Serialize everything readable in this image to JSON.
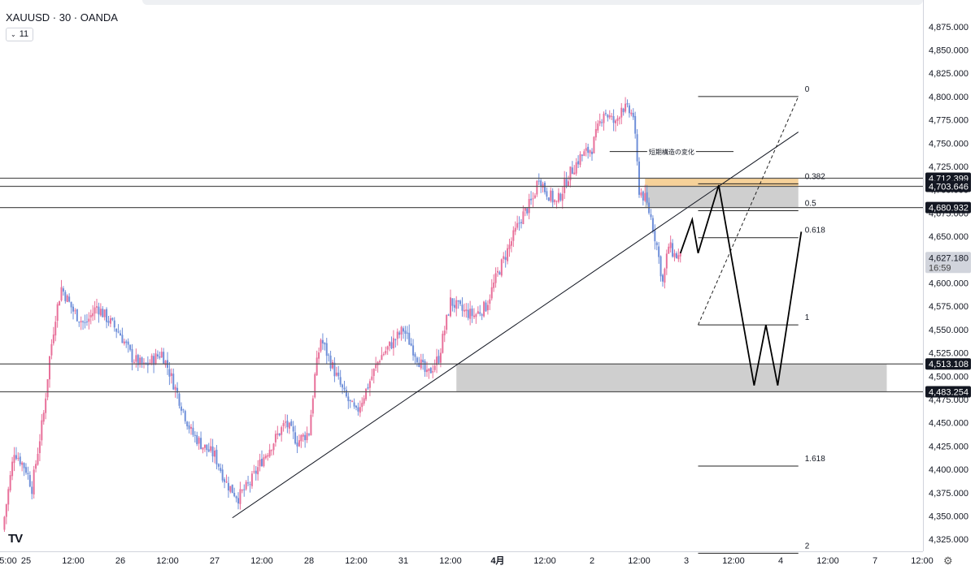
{
  "header": {
    "symbol": "XAUUSD · 30 · OANDA",
    "indicator_count": "11",
    "indicator_icon": "chevron-down-icon"
  },
  "logo": {
    "text": "TV",
    "icon": "tradingview-logo-icon"
  },
  "settings": {
    "icon": "gear-icon",
    "glyph": "⚙"
  },
  "colors": {
    "bull": "#e8709a",
    "bear": "#6f8fd9",
    "hline": "#555555",
    "zone": "#cccccc",
    "orange_zone": "#f5cf94",
    "last_price_badge": "#d1d4dc"
  },
  "chart_data": {
    "type": "candlestick",
    "symbol": "XAUUSD",
    "timeframe": "30",
    "ylim": [
      4312.5,
      4887.5
    ],
    "yticks": [
      4325,
      4350,
      4375,
      4400,
      4425,
      4450,
      4475,
      4500,
      4525,
      4550,
      4575,
      4600,
      4625,
      4650,
      4675,
      4700,
      4725,
      4750,
      4775,
      4800,
      4825,
      4850,
      4875
    ],
    "ytick_labels": [
      "4,325.000",
      "4,350.000",
      "4,375.000",
      "4,400.000",
      "4,425.000",
      "4,450.000",
      "4,475.000",
      "4,500.000",
      "4,525.000",
      "4,550.000",
      "4,575.000",
      "4,600.000",
      "4,625.000",
      "4,650.000",
      "4,675.000",
      "4,700.000",
      "4,725.000",
      "4,750.000",
      "4,775.000",
      "4,800.000",
      "4,825.000",
      "4,850.000",
      "4,875.000"
    ],
    "xticks": [
      {
        "label": "5:00",
        "pos": 0
      },
      {
        "label": "25",
        "pos": 4
      },
      {
        "label": "12:00",
        "pos": 12
      },
      {
        "label": "26",
        "pos": 20
      },
      {
        "label": "12:00",
        "pos": 28
      },
      {
        "label": "27",
        "pos": 36
      },
      {
        "label": "12:00",
        "pos": 44
      },
      {
        "label": "28",
        "pos": 52
      },
      {
        "label": "12:00",
        "pos": 60
      },
      {
        "label": "31",
        "pos": 68
      },
      {
        "label": "12:00",
        "pos": 76
      },
      {
        "label": "4月",
        "pos": 84
      },
      {
        "label": "12:00",
        "pos": 92
      },
      {
        "label": "2",
        "pos": 100
      },
      {
        "label": "12:00",
        "pos": 108
      },
      {
        "label": "3",
        "pos": 116
      },
      {
        "label": "12:00",
        "pos": 124
      },
      {
        "label": "4",
        "pos": 132
      },
      {
        "label": "12:00",
        "pos": 140
      },
      {
        "label": "7",
        "pos": 148
      },
      {
        "label": "12:00",
        "pos": 156
      }
    ],
    "price_path": [
      {
        "t": 0,
        "p": 4335
      },
      {
        "t": 2,
        "p": 4420
      },
      {
        "t": 4,
        "p": 4400
      },
      {
        "t": 5,
        "p": 4380
      },
      {
        "t": 7,
        "p": 4460
      },
      {
        "t": 8,
        "p": 4520
      },
      {
        "t": 9,
        "p": 4565
      },
      {
        "t": 10,
        "p": 4595
      },
      {
        "t": 12,
        "p": 4570
      },
      {
        "t": 14,
        "p": 4555
      },
      {
        "t": 16,
        "p": 4575
      },
      {
        "t": 18,
        "p": 4560
      },
      {
        "t": 20,
        "p": 4545
      },
      {
        "t": 22,
        "p": 4520
      },
      {
        "t": 24,
        "p": 4510
      },
      {
        "t": 27,
        "p": 4525
      },
      {
        "t": 28,
        "p": 4510
      },
      {
        "t": 30,
        "p": 4475
      },
      {
        "t": 32,
        "p": 4440
      },
      {
        "t": 34,
        "p": 4425
      },
      {
        "t": 36,
        "p": 4415
      },
      {
        "t": 38,
        "p": 4385
      },
      {
        "t": 40,
        "p": 4370
      },
      {
        "t": 42,
        "p": 4385
      },
      {
        "t": 44,
        "p": 4410
      },
      {
        "t": 46,
        "p": 4430
      },
      {
        "t": 48,
        "p": 4450
      },
      {
        "t": 50,
        "p": 4430
      },
      {
        "t": 52,
        "p": 4440
      },
      {
        "t": 53,
        "p": 4500
      },
      {
        "t": 54,
        "p": 4540
      },
      {
        "t": 56,
        "p": 4510
      },
      {
        "t": 58,
        "p": 4480
      },
      {
        "t": 60,
        "p": 4460
      },
      {
        "t": 62,
        "p": 4490
      },
      {
        "t": 64,
        "p": 4520
      },
      {
        "t": 66,
        "p": 4535
      },
      {
        "t": 68,
        "p": 4550
      },
      {
        "t": 70,
        "p": 4525
      },
      {
        "t": 72,
        "p": 4500
      },
      {
        "t": 74,
        "p": 4520
      },
      {
        "t": 76,
        "p": 4580
      },
      {
        "t": 78,
        "p": 4570
      },
      {
        "t": 80,
        "p": 4565
      },
      {
        "t": 82,
        "p": 4575
      },
      {
        "t": 84,
        "p": 4610
      },
      {
        "t": 86,
        "p": 4640
      },
      {
        "t": 88,
        "p": 4670
      },
      {
        "t": 90,
        "p": 4690
      },
      {
        "t": 91,
        "p": 4715
      },
      {
        "t": 92,
        "p": 4700
      },
      {
        "t": 94,
        "p": 4685
      },
      {
        "t": 96,
        "p": 4715
      },
      {
        "t": 98,
        "p": 4735
      },
      {
        "t": 100,
        "p": 4745
      },
      {
        "t": 102,
        "p": 4785
      },
      {
        "t": 104,
        "p": 4770
      },
      {
        "t": 105,
        "p": 4790
      },
      {
        "t": 107,
        "p": 4780
      },
      {
        "t": 108,
        "p": 4700
      },
      {
        "t": 109,
        "p": 4690
      },
      {
        "t": 110,
        "p": 4670
      },
      {
        "t": 111,
        "p": 4640
      },
      {
        "t": 112,
        "p": 4600
      },
      {
        "t": 113,
        "p": 4640
      },
      {
        "t": 114,
        "p": 4630
      },
      {
        "t": 115,
        "p": 4627
      }
    ],
    "hlines": [
      {
        "price": 4712.399,
        "label": "4,712.399"
      },
      {
        "price": 4703.646,
        "label": "4,703.646"
      },
      {
        "price": 4680.932,
        "label": "4,680.932"
      },
      {
        "price": 4513.108,
        "label": "4,513.108"
      },
      {
        "price": 4483.254,
        "label": "4,483.254"
      }
    ],
    "last_price": {
      "price": 4627.18,
      "label": "4,627.180",
      "countdown": "16:59"
    },
    "zones": [
      {
        "name": "demand-zone",
        "t_from": 77,
        "t_to": 150,
        "p_from": 4483.254,
        "p_to": 4513.108
      },
      {
        "name": "supply-zone",
        "t_from": 109,
        "t_to": 135,
        "p_from": 4680.932,
        "p_to": 4703.646
      },
      {
        "name": "orange-zone",
        "t_from": 109,
        "t_to": 135,
        "p_from": 4703.646,
        "p_to": 4712.399
      }
    ],
    "trendline": {
      "t1": 39,
      "p1": 4348,
      "t2": 135,
      "p2": 4762
    },
    "fibonacci": {
      "t_from": 118,
      "t_to": 135,
      "p_zero": 4800,
      "p_one": 4555,
      "levels": [
        {
          "ratio": 0,
          "label": "0"
        },
        {
          "ratio": 0.382,
          "label": "0.382"
        },
        {
          "ratio": 0.5,
          "label": "0.5"
        },
        {
          "ratio": 0.618,
          "label": "0.618"
        },
        {
          "ratio": 1,
          "label": "1"
        },
        {
          "ratio": 1.618,
          "label": "1.618"
        },
        {
          "ratio": 2,
          "label": "2"
        }
      ]
    },
    "fib_diagonal": {
      "t1": 118,
      "p1": 4555,
      "t2": 135,
      "p2": 4800
    },
    "projection": [
      {
        "t": 115,
        "p": 4632
      },
      {
        "t": 117,
        "p": 4668
      },
      {
        "t": 118,
        "p": 4632
      },
      {
        "t": 121.5,
        "p": 4705
      },
      {
        "t": 127.5,
        "p": 4490
      },
      {
        "t": 129.5,
        "p": 4555
      },
      {
        "t": 131.5,
        "p": 4490
      },
      {
        "t": 135.5,
        "p": 4655
      }
    ],
    "annotation": {
      "text": "短期構造の変化",
      "price": 4741,
      "t_from": 103,
      "t_to": 124
    }
  }
}
